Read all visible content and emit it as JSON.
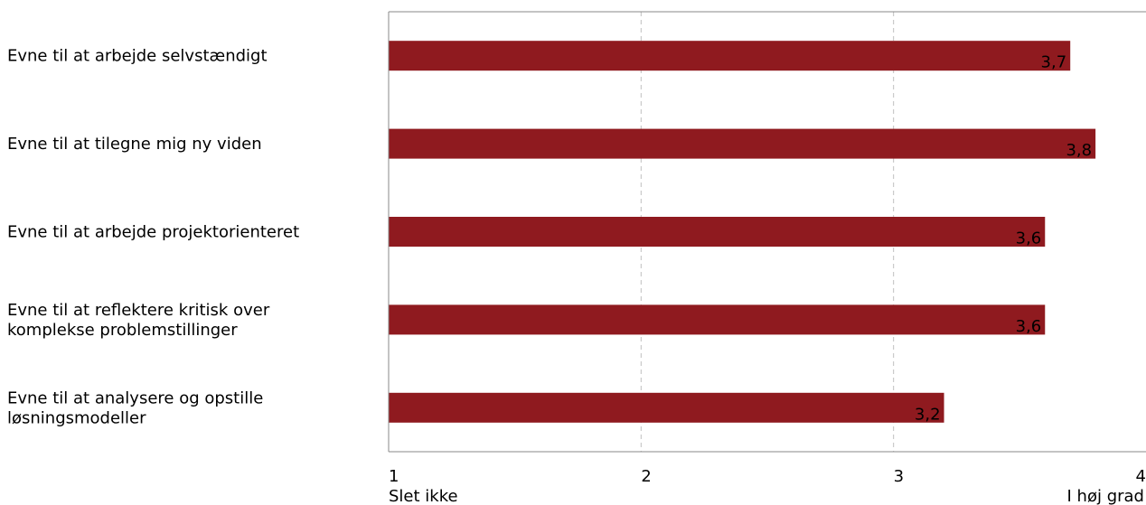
{
  "chart_data": {
    "type": "bar",
    "orientation": "horizontal",
    "categories": [
      [
        "Evne til at arbejde selvstændigt"
      ],
      [
        "Evne til at tilegne mig ny viden"
      ],
      [
        "Evne til at arbejde projektorienteret"
      ],
      [
        "Evne til at reflektere kritisk over",
        "komplekse problemstillinger"
      ],
      [
        "Evne til at analysere og opstille",
        "løsningsmodeller"
      ]
    ],
    "values": [
      3.7,
      3.8,
      3.6,
      3.6,
      3.2
    ],
    "value_labels": [
      "3,7",
      "3,8",
      "3,6",
      "3,6",
      "3,2"
    ],
    "xlim": [
      1,
      4
    ],
    "xticks": [
      1,
      2,
      3,
      4
    ],
    "xtick_labels": [
      "1",
      "2",
      "3",
      "4"
    ],
    "scale_end_labels": [
      "Slet ikke",
      "I høj grad"
    ],
    "grid": true,
    "colors": {
      "bar": "#8f1a1f",
      "grid": "#c0c0c0",
      "axis": "#888888"
    }
  }
}
